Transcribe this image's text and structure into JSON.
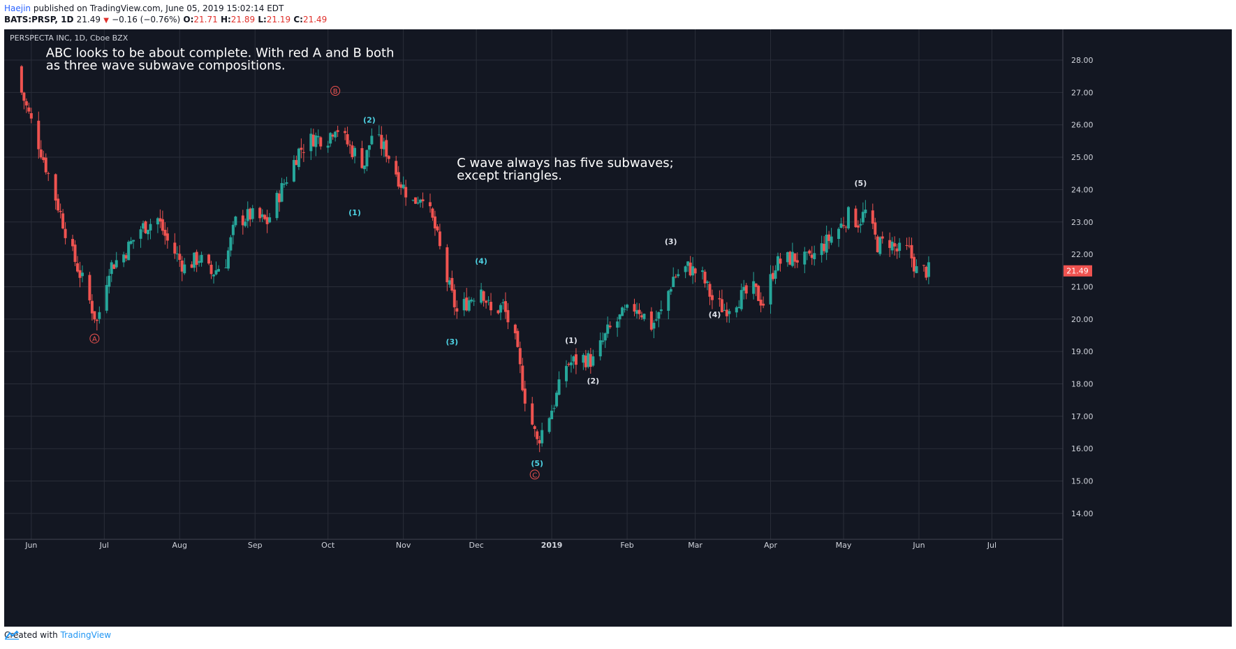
{
  "header": {
    "author": "Haejin",
    "published_text": "published on TradingView.com, June 05, 2019 15:02:14 EDT",
    "symbol": "BATS:PRSP, 1D",
    "last": "21.49",
    "change": "−0.16 (−0.76%)",
    "o_label": "O:",
    "o_value": "21.71",
    "h_label": "H:",
    "h_value": "21.89",
    "l_label": "L:",
    "l_value": "21.19",
    "c_label": "C:",
    "c_value": "21.49"
  },
  "footer": {
    "created_with": "Created with",
    "brand": "TradingView"
  },
  "colors": {
    "bg": "#131722",
    "grid": "#2a2e39",
    "up": "#26a69a",
    "down": "#ef5350",
    "wave_cyan": "#4dd0e1",
    "wave_white": "#e0e3eb",
    "abc": "#ef5350",
    "text": "#d1d4dc"
  },
  "chart_data": {
    "type": "candlestick",
    "title": "PERSPECTA INC, 1D, Cboe BZX",
    "x_ticks": [
      "Jun",
      "Jul",
      "Aug",
      "Sep",
      "Oct",
      "Nov",
      "Dec",
      "2019",
      "Feb",
      "Mar",
      "Apr",
      "May",
      "Jun",
      "Jul"
    ],
    "y_ticks": [
      "28.00",
      "27.00",
      "26.00",
      "25.00",
      "24.00",
      "23.00",
      "22.00",
      "21.00",
      "20.00",
      "19.00",
      "18.00",
      "17.00",
      "16.00",
      "15.00",
      "14.00"
    ],
    "ylim": [
      13.2,
      29.0
    ],
    "last_price_label": "21.49",
    "closes": [
      [
        "2018-05-28",
        27.0
      ],
      [
        "2018-06-05",
        25.2
      ],
      [
        "2018-06-12",
        23.5
      ],
      [
        "2018-06-18",
        22.0
      ],
      [
        "2018-06-22",
        21.2
      ],
      [
        "2018-06-28",
        19.9
      ],
      [
        "2018-07-03",
        21.6
      ],
      [
        "2018-07-09",
        22.0
      ],
      [
        "2018-07-16",
        22.8
      ],
      [
        "2018-07-23",
        23.1
      ],
      [
        "2018-07-27",
        22.4
      ],
      [
        "2018-08-03",
        21.6
      ],
      [
        "2018-08-09",
        21.9
      ],
      [
        "2018-08-14",
        21.4
      ],
      [
        "2018-08-20",
        21.8
      ],
      [
        "2018-08-24",
        23.0
      ],
      [
        "2018-08-30",
        23.2
      ],
      [
        "2018-09-06",
        23.0
      ],
      [
        "2018-09-13",
        24.2
      ],
      [
        "2018-09-19",
        25.2
      ],
      [
        "2018-09-25",
        25.6
      ],
      [
        "2018-10-01",
        25.6
      ],
      [
        "2018-10-04",
        26.0
      ],
      [
        "2018-10-10",
        25.3
      ],
      [
        "2018-10-16",
        24.8
      ],
      [
        "2018-10-19",
        25.7
      ],
      [
        "2018-10-25",
        25.2
      ],
      [
        "2018-10-31",
        24.2
      ],
      [
        "2018-11-05",
        23.6
      ],
      [
        "2018-11-09",
        23.9
      ],
      [
        "2018-11-14",
        22.8
      ],
      [
        "2018-11-19",
        21.2
      ],
      [
        "2018-11-23",
        20.2
      ],
      [
        "2018-11-28",
        20.6
      ],
      [
        "2018-12-03",
        21.0
      ],
      [
        "2018-12-07",
        20.2
      ],
      [
        "2018-12-12",
        20.4
      ],
      [
        "2018-12-17",
        19.3
      ],
      [
        "2018-12-21",
        17.6
      ],
      [
        "2018-12-26",
        16.2
      ],
      [
        "2019-01-02",
        17.4
      ],
      [
        "2019-01-07",
        18.6
      ],
      [
        "2019-01-14",
        18.8
      ],
      [
        "2019-01-18",
        18.7
      ],
      [
        "2019-01-24",
        19.6
      ],
      [
        "2019-01-30",
        20.1
      ],
      [
        "2019-02-05",
        20.4
      ],
      [
        "2019-02-11",
        19.8
      ],
      [
        "2019-02-15",
        20.2
      ],
      [
        "2019-02-20",
        21.3
      ],
      [
        "2019-02-26",
        21.6
      ],
      [
        "2019-03-04",
        21.3
      ],
      [
        "2019-03-08",
        20.6
      ],
      [
        "2019-03-13",
        20.3
      ],
      [
        "2019-03-18",
        20.6
      ],
      [
        "2019-03-25",
        20.9
      ],
      [
        "2019-03-29",
        20.5
      ],
      [
        "2019-04-03",
        21.7
      ],
      [
        "2019-04-10",
        21.9
      ],
      [
        "2019-04-17",
        21.8
      ],
      [
        "2019-04-23",
        22.3
      ],
      [
        "2019-04-29",
        22.8
      ],
      [
        "2019-05-03",
        23.2
      ],
      [
        "2019-05-07",
        23.0
      ],
      [
        "2019-05-10",
        23.3
      ],
      [
        "2019-05-15",
        22.3
      ],
      [
        "2019-05-20",
        22.4
      ],
      [
        "2019-05-23",
        22.1
      ],
      [
        "2019-05-28",
        22.1
      ],
      [
        "2019-05-31",
        21.5
      ],
      [
        "2019-06-05",
        21.49
      ]
    ],
    "wave_labels": [
      {
        "text": "A",
        "date": "2018-06-27",
        "price": 19.4,
        "kind": "abc"
      },
      {
        "text": "B",
        "date": "2018-10-04",
        "price": 27.05,
        "kind": "abc"
      },
      {
        "text": "C",
        "date": "2018-12-25",
        "price": 15.2,
        "kind": "abc"
      },
      {
        "text": "(1)",
        "date": "2018-10-12",
        "price": 23.3,
        "kind": "cyan"
      },
      {
        "text": "(2)",
        "date": "2018-10-18",
        "price": 26.15,
        "kind": "cyan"
      },
      {
        "text": "(3)",
        "date": "2018-11-21",
        "price": 19.3,
        "kind": "cyan"
      },
      {
        "text": "(4)",
        "date": "2018-12-03",
        "price": 21.8,
        "kind": "cyan"
      },
      {
        "text": "(5)",
        "date": "2018-12-26",
        "price": 15.55,
        "kind": "cyan"
      },
      {
        "text": "(1)",
        "date": "2019-01-09",
        "price": 19.35,
        "kind": "white"
      },
      {
        "text": "(2)",
        "date": "2019-01-18",
        "price": 18.1,
        "kind": "white"
      },
      {
        "text": "(3)",
        "date": "2019-02-19",
        "price": 22.4,
        "kind": "white"
      },
      {
        "text": "(4)",
        "date": "2019-03-09",
        "price": 20.15,
        "kind": "white"
      },
      {
        "text": "(5)",
        "date": "2019-05-08",
        "price": 24.2,
        "kind": "white"
      }
    ],
    "annotations": [
      {
        "lines": [
          "ABC looks to be about complete. With red A and B both",
          "as three wave subwave compositions."
        ],
        "date": "2018-06-07",
        "price": 28.1
      },
      {
        "lines": [
          "C wave always has five subwaves;",
          "except triangles."
        ],
        "date": "2018-11-23",
        "price": 24.7
      }
    ]
  }
}
